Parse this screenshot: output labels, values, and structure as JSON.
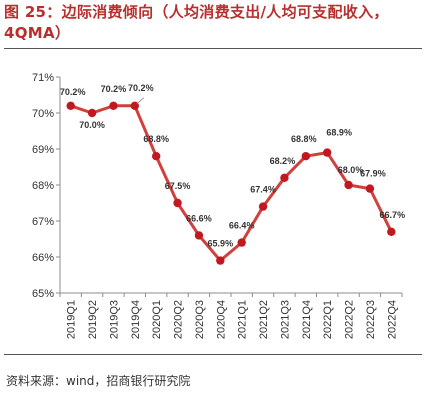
{
  "figure": {
    "title": "图 25：边际消费倾向（人均消费支出/人均可支配收入，4QMA）",
    "source": "资料来源：wind，招商银行研究院"
  },
  "colors": {
    "title": "#b8302d",
    "line": "#d1403c",
    "marker": "#c01920"
  },
  "chart_data": {
    "type": "line",
    "title": "",
    "xlabel": "",
    "ylabel": "",
    "ylim": [
      65,
      71
    ],
    "yticks": [
      65,
      66,
      67,
      68,
      69,
      70,
      71
    ],
    "ytick_labels": [
      "65%",
      "66%",
      "67%",
      "68%",
      "69%",
      "70%",
      "71%"
    ],
    "grid": false,
    "legend": "none",
    "categories": [
      "2019Q1",
      "2019Q2",
      "2019Q3",
      "2019Q4",
      "2020Q1",
      "2020Q2",
      "2020Q3",
      "2020Q4",
      "2021Q1",
      "2021Q2",
      "2021Q3",
      "2021Q4",
      "2022Q1",
      "2022Q2",
      "2022Q3",
      "2022Q4"
    ],
    "series": [
      {
        "values": [
          70.2,
          70.0,
          70.2,
          70.2,
          68.8,
          67.5,
          66.6,
          65.9,
          66.4,
          67.4,
          68.2,
          68.8,
          68.9,
          68.0,
          67.9,
          66.7
        ],
        "labels": [
          "70.2%",
          "70.0%",
          "70.2%",
          "70.2%",
          "68.8%",
          "67.5%",
          "66.6%",
          "65.9%",
          "66.4%",
          "67.4%",
          "68.2%",
          "68.8%",
          "68.9%",
          "68.0%",
          "67.9%",
          "66.7%"
        ]
      }
    ]
  }
}
